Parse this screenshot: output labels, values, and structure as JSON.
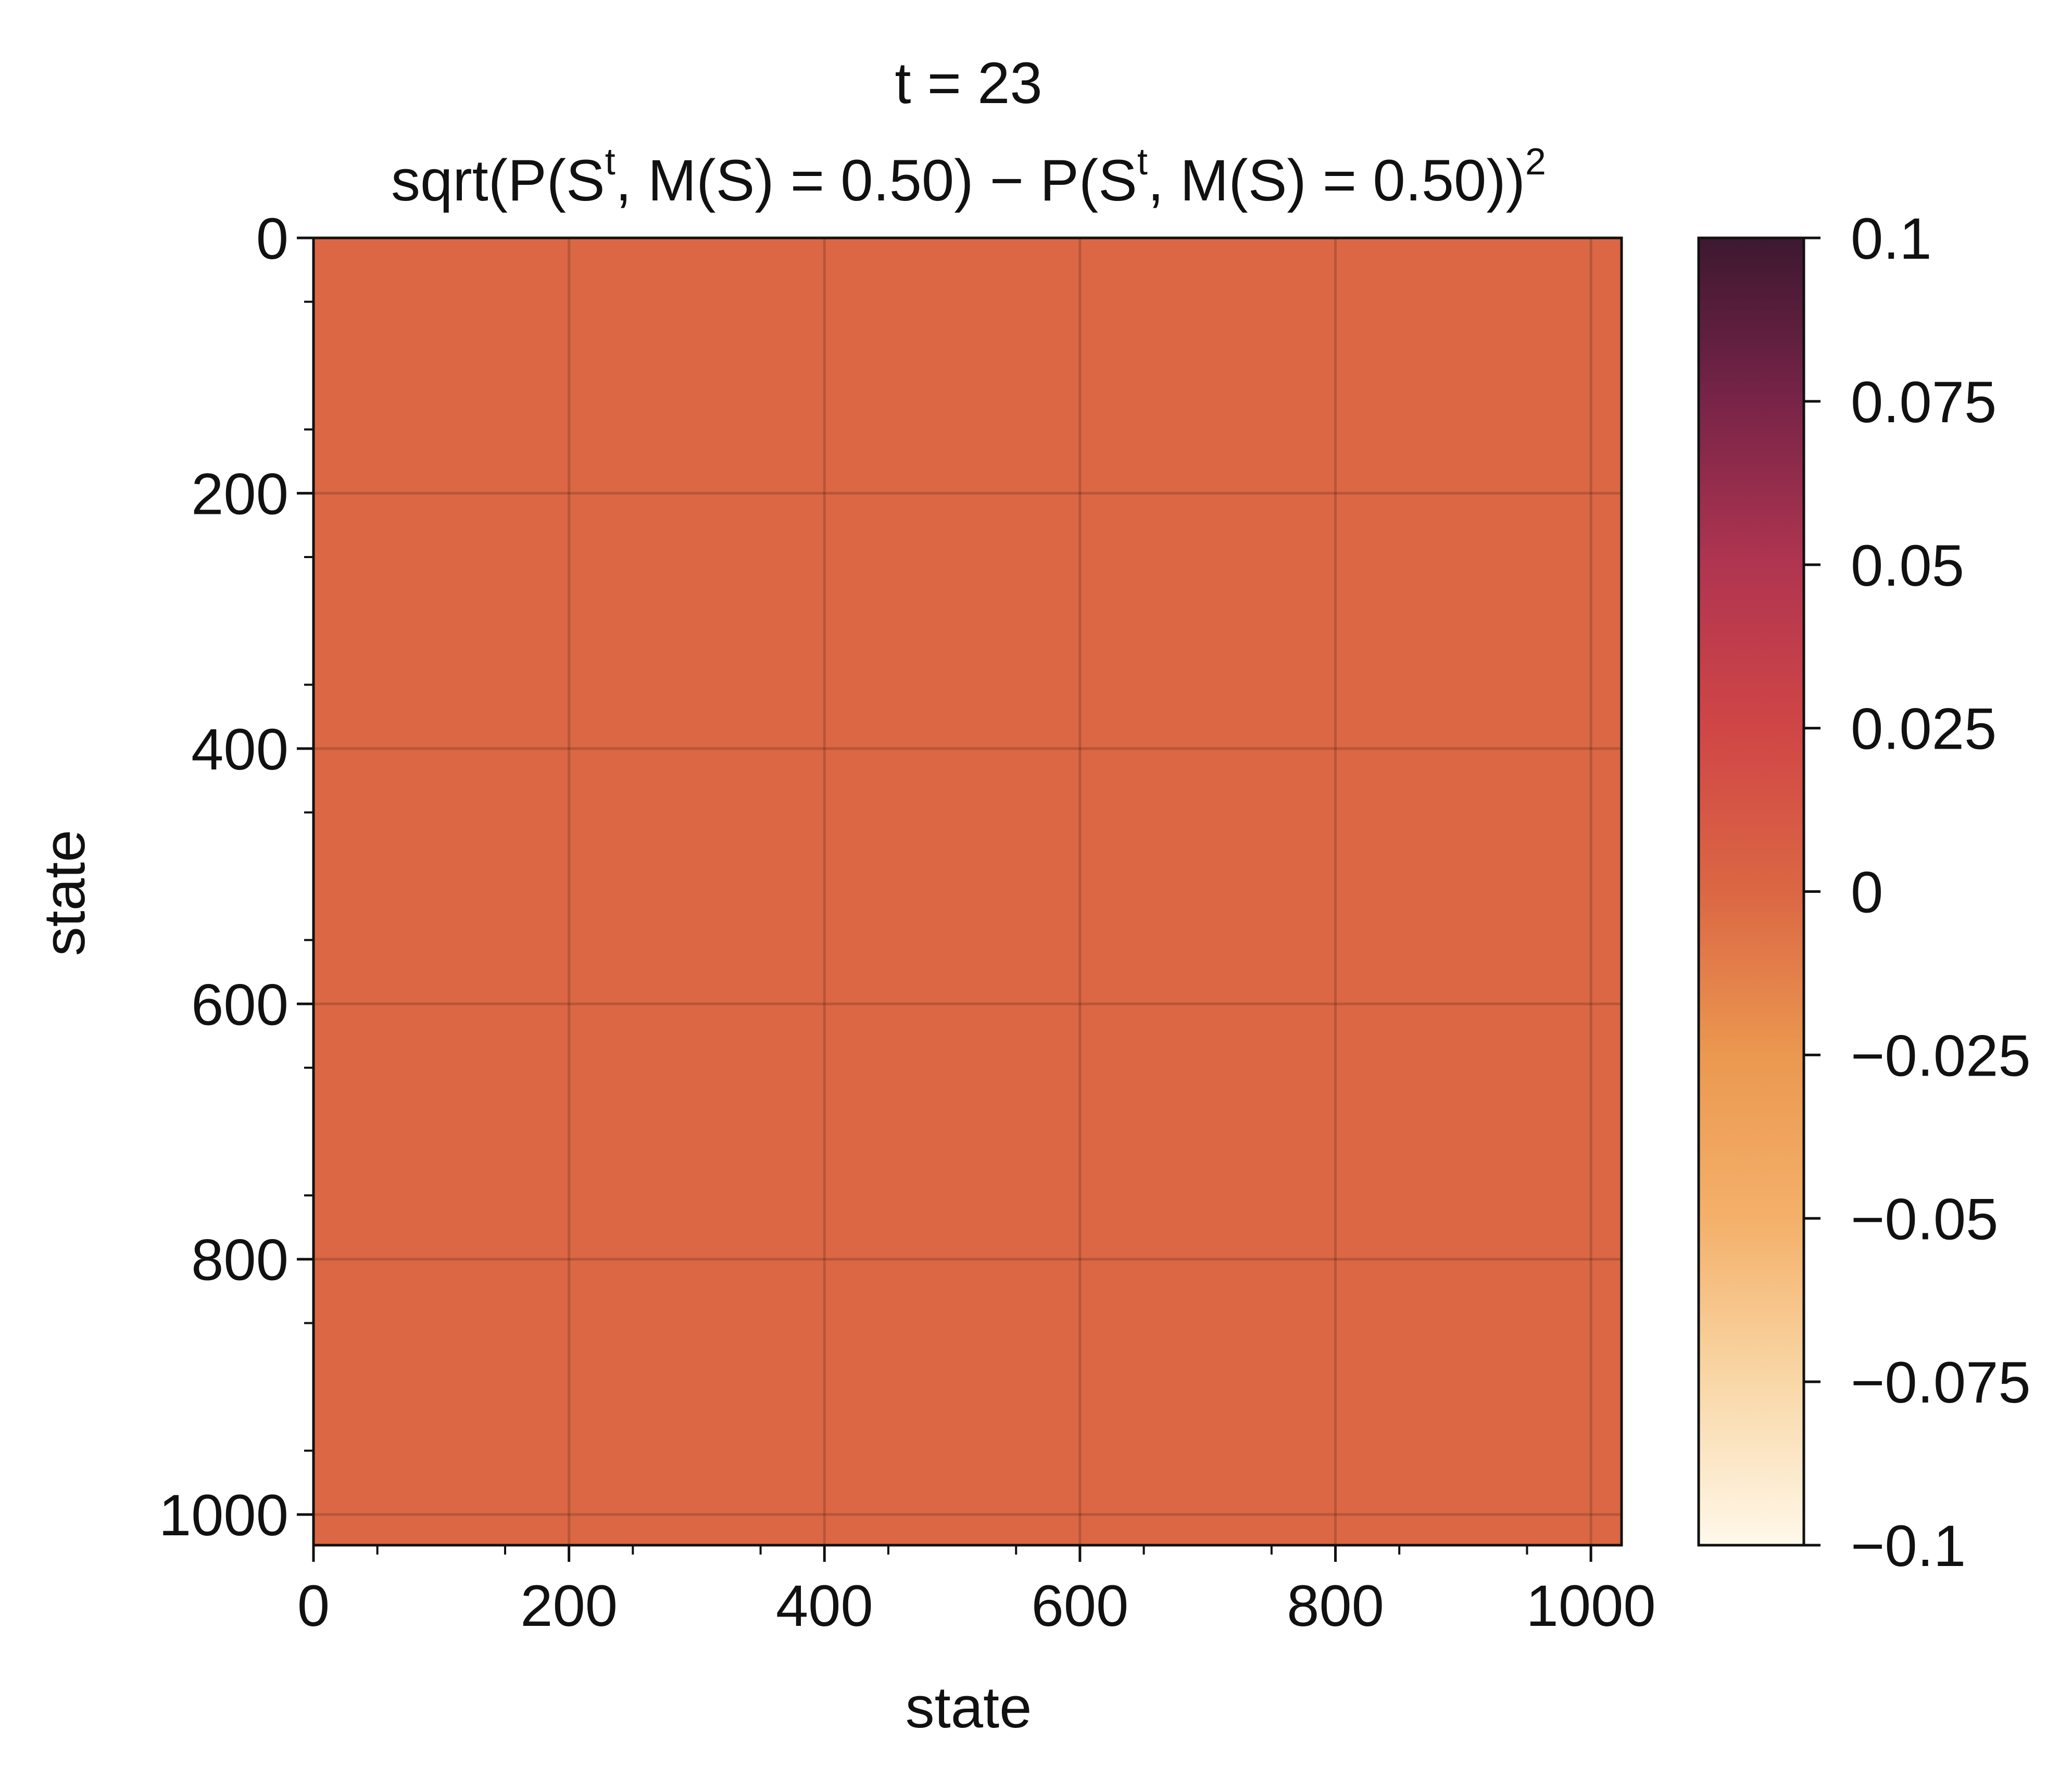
{
  "chart_data": {
    "type": "heatmap",
    "title_line1": "t = 23",
    "title_line2": {
      "p1": "sqrt(P(S",
      "sup1": "t",
      "p2": ", M(S) = 0.50) − P(S",
      "sup2": "t",
      "p3": ", M(S) = 0.50))",
      "sup3": "2"
    },
    "xlabel": "state",
    "ylabel": "state",
    "x_range": [
      0,
      1024
    ],
    "y_range": [
      0,
      1024
    ],
    "y_inverted": true,
    "x_ticks": [
      0,
      200,
      400,
      600,
      800,
      1000
    ],
    "y_ticks": [
      0,
      200,
      400,
      600,
      800,
      1000
    ],
    "grid": true,
    "uniform_value": 0,
    "cell_color": "#db6744",
    "colorbar": {
      "range": [
        -0.1,
        0.1
      ],
      "ticks": [
        {
          "value": 0.1,
          "label": "0.1"
        },
        {
          "value": 0.075,
          "label": "0.075"
        },
        {
          "value": 0.05,
          "label": "0.05"
        },
        {
          "value": 0.025,
          "label": "0.025"
        },
        {
          "value": 0,
          "label": "0"
        },
        {
          "value": -0.025,
          "label": "−0.025"
        },
        {
          "value": -0.05,
          "label": "−0.05"
        },
        {
          "value": -0.075,
          "label": "−0.075"
        },
        {
          "value": -0.1,
          "label": "−0.1"
        }
      ],
      "colors": [
        {
          "value": -0.1,
          "color": "#fff8ea"
        },
        {
          "value": -0.075,
          "color": "#f9d7a7"
        },
        {
          "value": -0.05,
          "color": "#f4b06a"
        },
        {
          "value": -0.025,
          "color": "#eb9850"
        },
        {
          "value": 0,
          "color": "#db6744"
        },
        {
          "value": 0.025,
          "color": "#d04646"
        },
        {
          "value": 0.05,
          "color": "#b03550"
        },
        {
          "value": 0.075,
          "color": "#782448"
        },
        {
          "value": 0.1,
          "color": "#3d1830"
        }
      ]
    }
  }
}
